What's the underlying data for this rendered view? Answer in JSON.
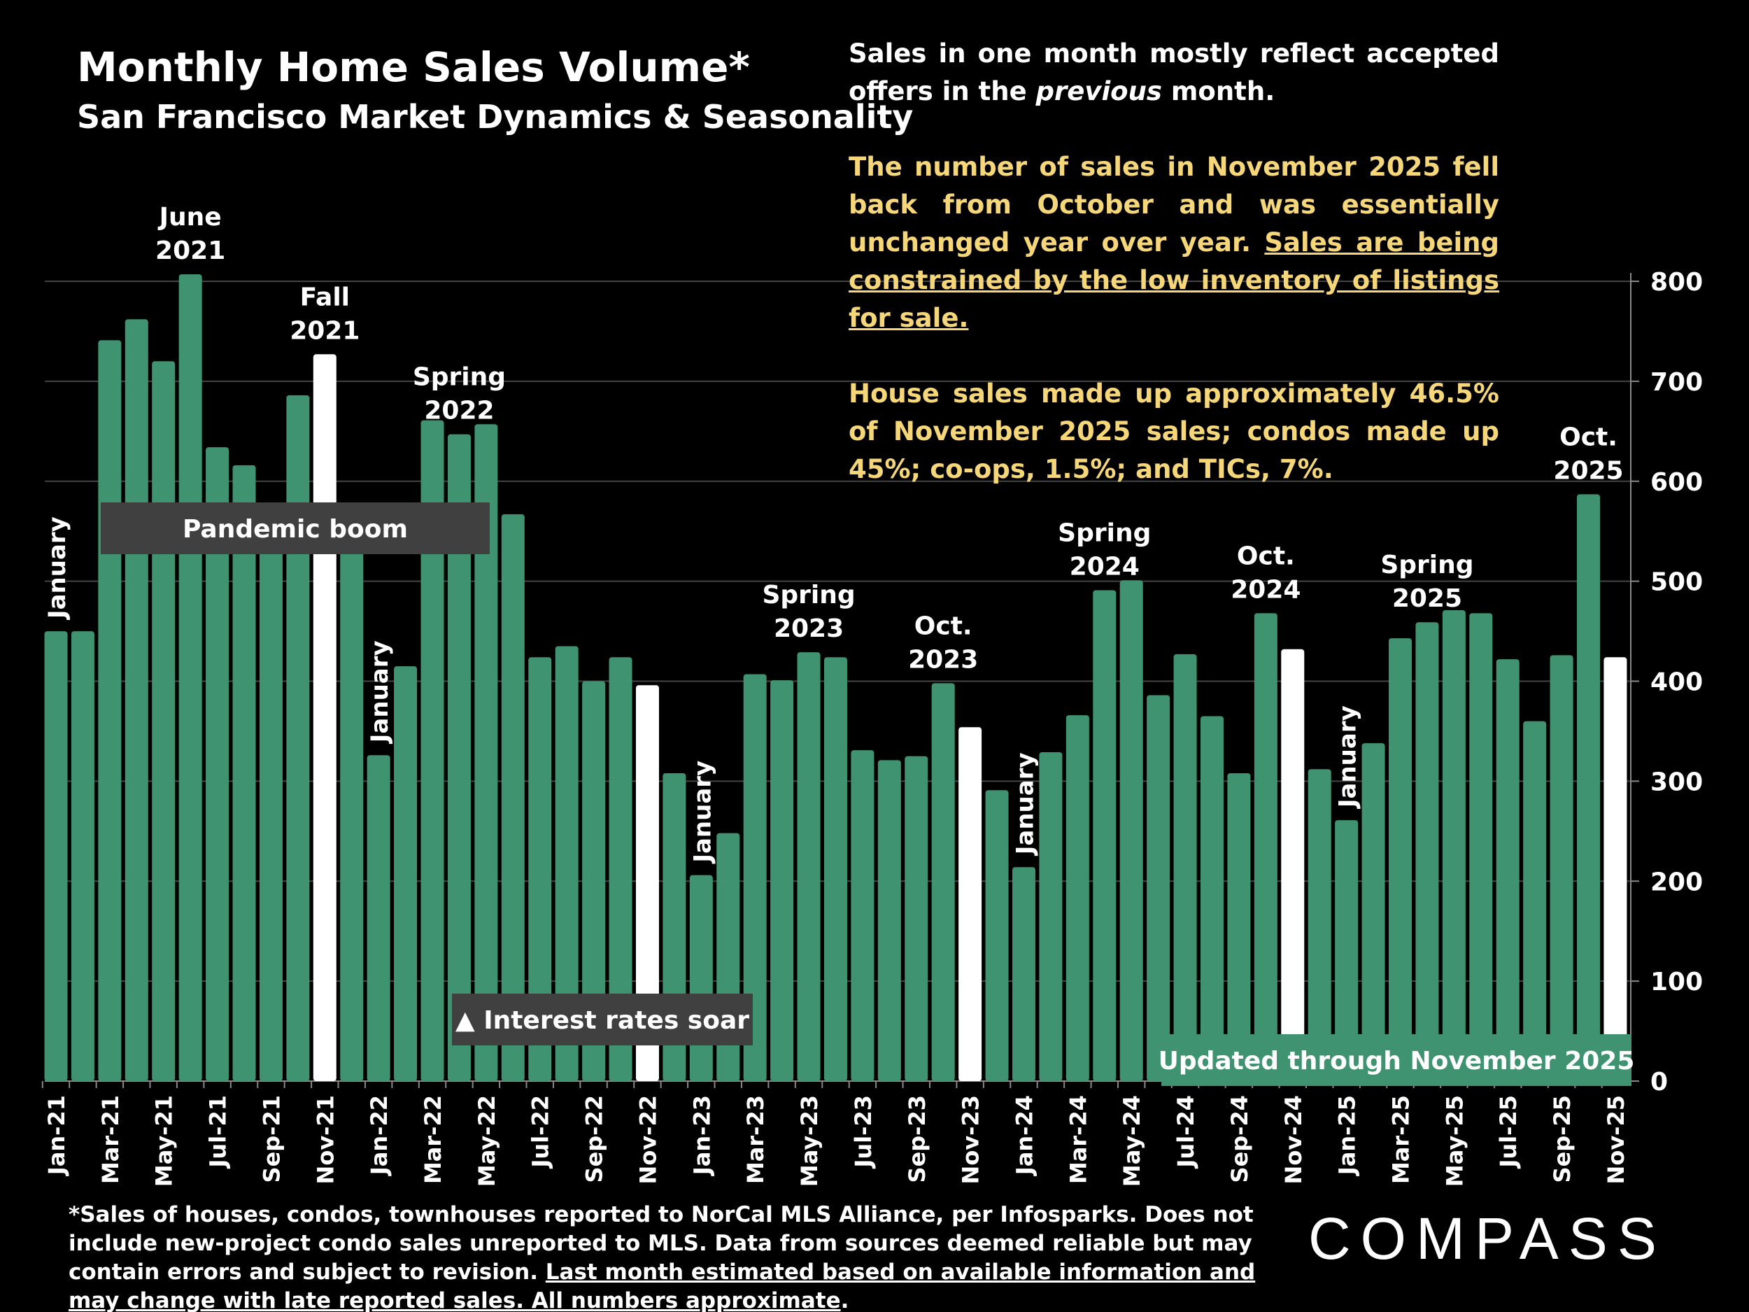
{
  "title": "Monthly Home Sales Volume*",
  "subtitle": "San Francisco Market Dynamics & Seasonality",
  "notes": {
    "p1a": "Sales in one month mostly reflect accepted offers in the ",
    "p1b": "previous",
    "p1c": " month.",
    "p2a": "The number of sales in November 2025 fell back from October and was essentially unchanged year over year. ",
    "p2b": "Sales are being constrained by the low inventory of listings for sale.",
    "p3": "House sales made up approximately 46.5% of November 2025 sales; condos made up 45%; co-ops, 1.5%; and TICs, 7%."
  },
  "footer": {
    "a": "*Sales of houses, condos, townhouses reported to NorCal MLS Alliance, per Infosparks. Does not include new-project condo sales unreported to MLS. Data from sources deemed reliable but may contain errors and subject to revision. ",
    "b": "Last month estimated based on available information and may change with late reported sales. All numbers approximate",
    "c": "."
  },
  "logo": "COMPASS",
  "colors": {
    "bar": "#3f9370",
    "highlight": "#ffffff",
    "label_box": "#404040",
    "updated_box": "#3f9370"
  },
  "chart_data": {
    "type": "bar",
    "ylim": [
      0,
      800
    ],
    "yticks": [
      0,
      100,
      200,
      300,
      400,
      500,
      600,
      700,
      800
    ],
    "grid": true,
    "categories": [
      "Jan-21",
      "Feb-21",
      "Mar-21",
      "Apr-21",
      "May-21",
      "Jun-21",
      "Jul-21",
      "Aug-21",
      "Sep-21",
      "Oct-21",
      "Nov-21",
      "Dec-21",
      "Jan-22",
      "Feb-22",
      "Mar-22",
      "Apr-22",
      "May-22",
      "Jun-22",
      "Jul-22",
      "Aug-22",
      "Sep-22",
      "Oct-22",
      "Nov-22",
      "Dec-22",
      "Jan-23",
      "Feb-23",
      "Mar-23",
      "Apr-23",
      "May-23",
      "Jun-23",
      "Jul-23",
      "Aug-23",
      "Sep-23",
      "Oct-23",
      "Nov-23",
      "Dec-23",
      "Jan-24",
      "Feb-24",
      "Mar-24",
      "Apr-24",
      "May-24",
      "Jun-24",
      "Jul-24",
      "Aug-24",
      "Sep-24",
      "Oct-24",
      "Nov-24",
      "Dec-24",
      "Jan-25",
      "Feb-25",
      "Mar-25",
      "Apr-25",
      "May-25",
      "Jun-25",
      "Jul-25",
      "Aug-25",
      "Sep-25",
      "Oct-25",
      "Nov-25"
    ],
    "values": [
      450,
      450,
      741,
      762,
      720,
      807,
      634,
      616,
      550,
      686,
      727,
      550,
      326,
      415,
      661,
      647,
      657,
      567,
      424,
      435,
      400,
      424,
      396,
      308,
      206,
      248,
      407,
      401,
      429,
      424,
      331,
      321,
      325,
      398,
      354,
      291,
      214,
      329,
      366,
      491,
      501,
      386,
      427,
      365,
      308,
      468,
      432,
      312,
      261,
      338,
      443,
      459,
      471,
      468,
      422,
      360,
      426,
      587,
      424
    ],
    "highlighted": [
      "Nov-21",
      "Nov-22",
      "Nov-23",
      "Nov-24",
      "Nov-25"
    ],
    "annotations": [
      {
        "month": "Jan-21",
        "text": "January",
        "rotated": true
      },
      {
        "month": "Jun-21",
        "text": "June 2021"
      },
      {
        "month": "Nov-21",
        "text": "Fall 2021"
      },
      {
        "month": "Jan-22",
        "text": "January",
        "rotated": true
      },
      {
        "month": "Apr-22",
        "text": "Spring 2022"
      },
      {
        "month": "Jan-23",
        "text": "January",
        "rotated": true
      },
      {
        "month": "May-23",
        "text": "Spring 2023"
      },
      {
        "month": "Oct-23",
        "text": "Oct. 2023"
      },
      {
        "month": "Jan-24",
        "text": "January",
        "rotated": true
      },
      {
        "month": "Apr-24",
        "text": "Spring 2024"
      },
      {
        "month": "Oct-24",
        "text": "Oct. 2024"
      },
      {
        "month": "Jan-25",
        "text": "January",
        "rotated": true
      },
      {
        "month": "Apr-25",
        "text": "Spring 2025"
      },
      {
        "month": "Oct-25",
        "text": "Oct. 2025"
      }
    ],
    "boxes": [
      {
        "text": "Pandemic boom"
      },
      {
        "text": "▲ Interest rates soar"
      },
      {
        "text": "Updated through November 2025"
      }
    ]
  }
}
